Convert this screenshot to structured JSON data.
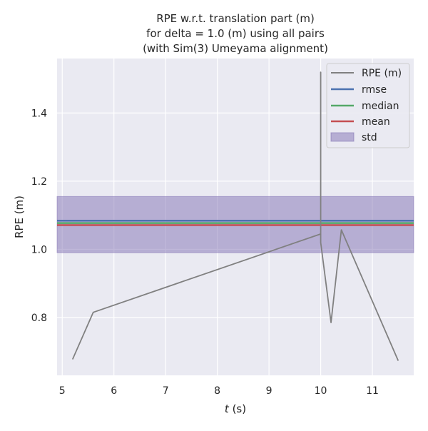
{
  "chart_data": {
    "type": "line",
    "title_lines": [
      "RPE w.r.t. translation part (m)",
      "for delta = 1.0 (m) using all pairs",
      "(with Sim(3) Umeyama alignment)"
    ],
    "xlabel_italic": "t",
    "xlabel_rest": " (s)",
    "ylabel": "RPE (m)",
    "xlim": [
      4.9,
      11.8
    ],
    "ylim": [
      0.63,
      1.56
    ],
    "xticks": [
      5,
      6,
      7,
      8,
      9,
      10,
      11
    ],
    "yticks": [
      0.8,
      1.0,
      1.2,
      1.4
    ],
    "ytick_labels": [
      "0.8",
      "1.0",
      "1.2",
      "1.4"
    ],
    "grid": true,
    "legend_position": "top-right",
    "series": [
      {
        "name": "RPE (m)",
        "color": "#808080",
        "x": [
          5.2,
          5.6,
          10.0,
          10.0,
          10.0,
          10.2,
          10.4,
          11.5
        ],
        "y": [
          0.677,
          0.815,
          1.045,
          1.52,
          1.02,
          0.785,
          1.057,
          0.673
        ]
      }
    ],
    "stats": {
      "rmse": {
        "name": "rmse",
        "value": 1.084,
        "color": "#4c72b0"
      },
      "median": {
        "name": "median",
        "value": 1.077,
        "color": "#55a868"
      },
      "mean": {
        "name": "mean",
        "value": 1.071,
        "color": "#c44e52"
      },
      "std": {
        "name": "std",
        "low": 0.99,
        "high": 1.155,
        "color": "#8172b3"
      }
    }
  }
}
